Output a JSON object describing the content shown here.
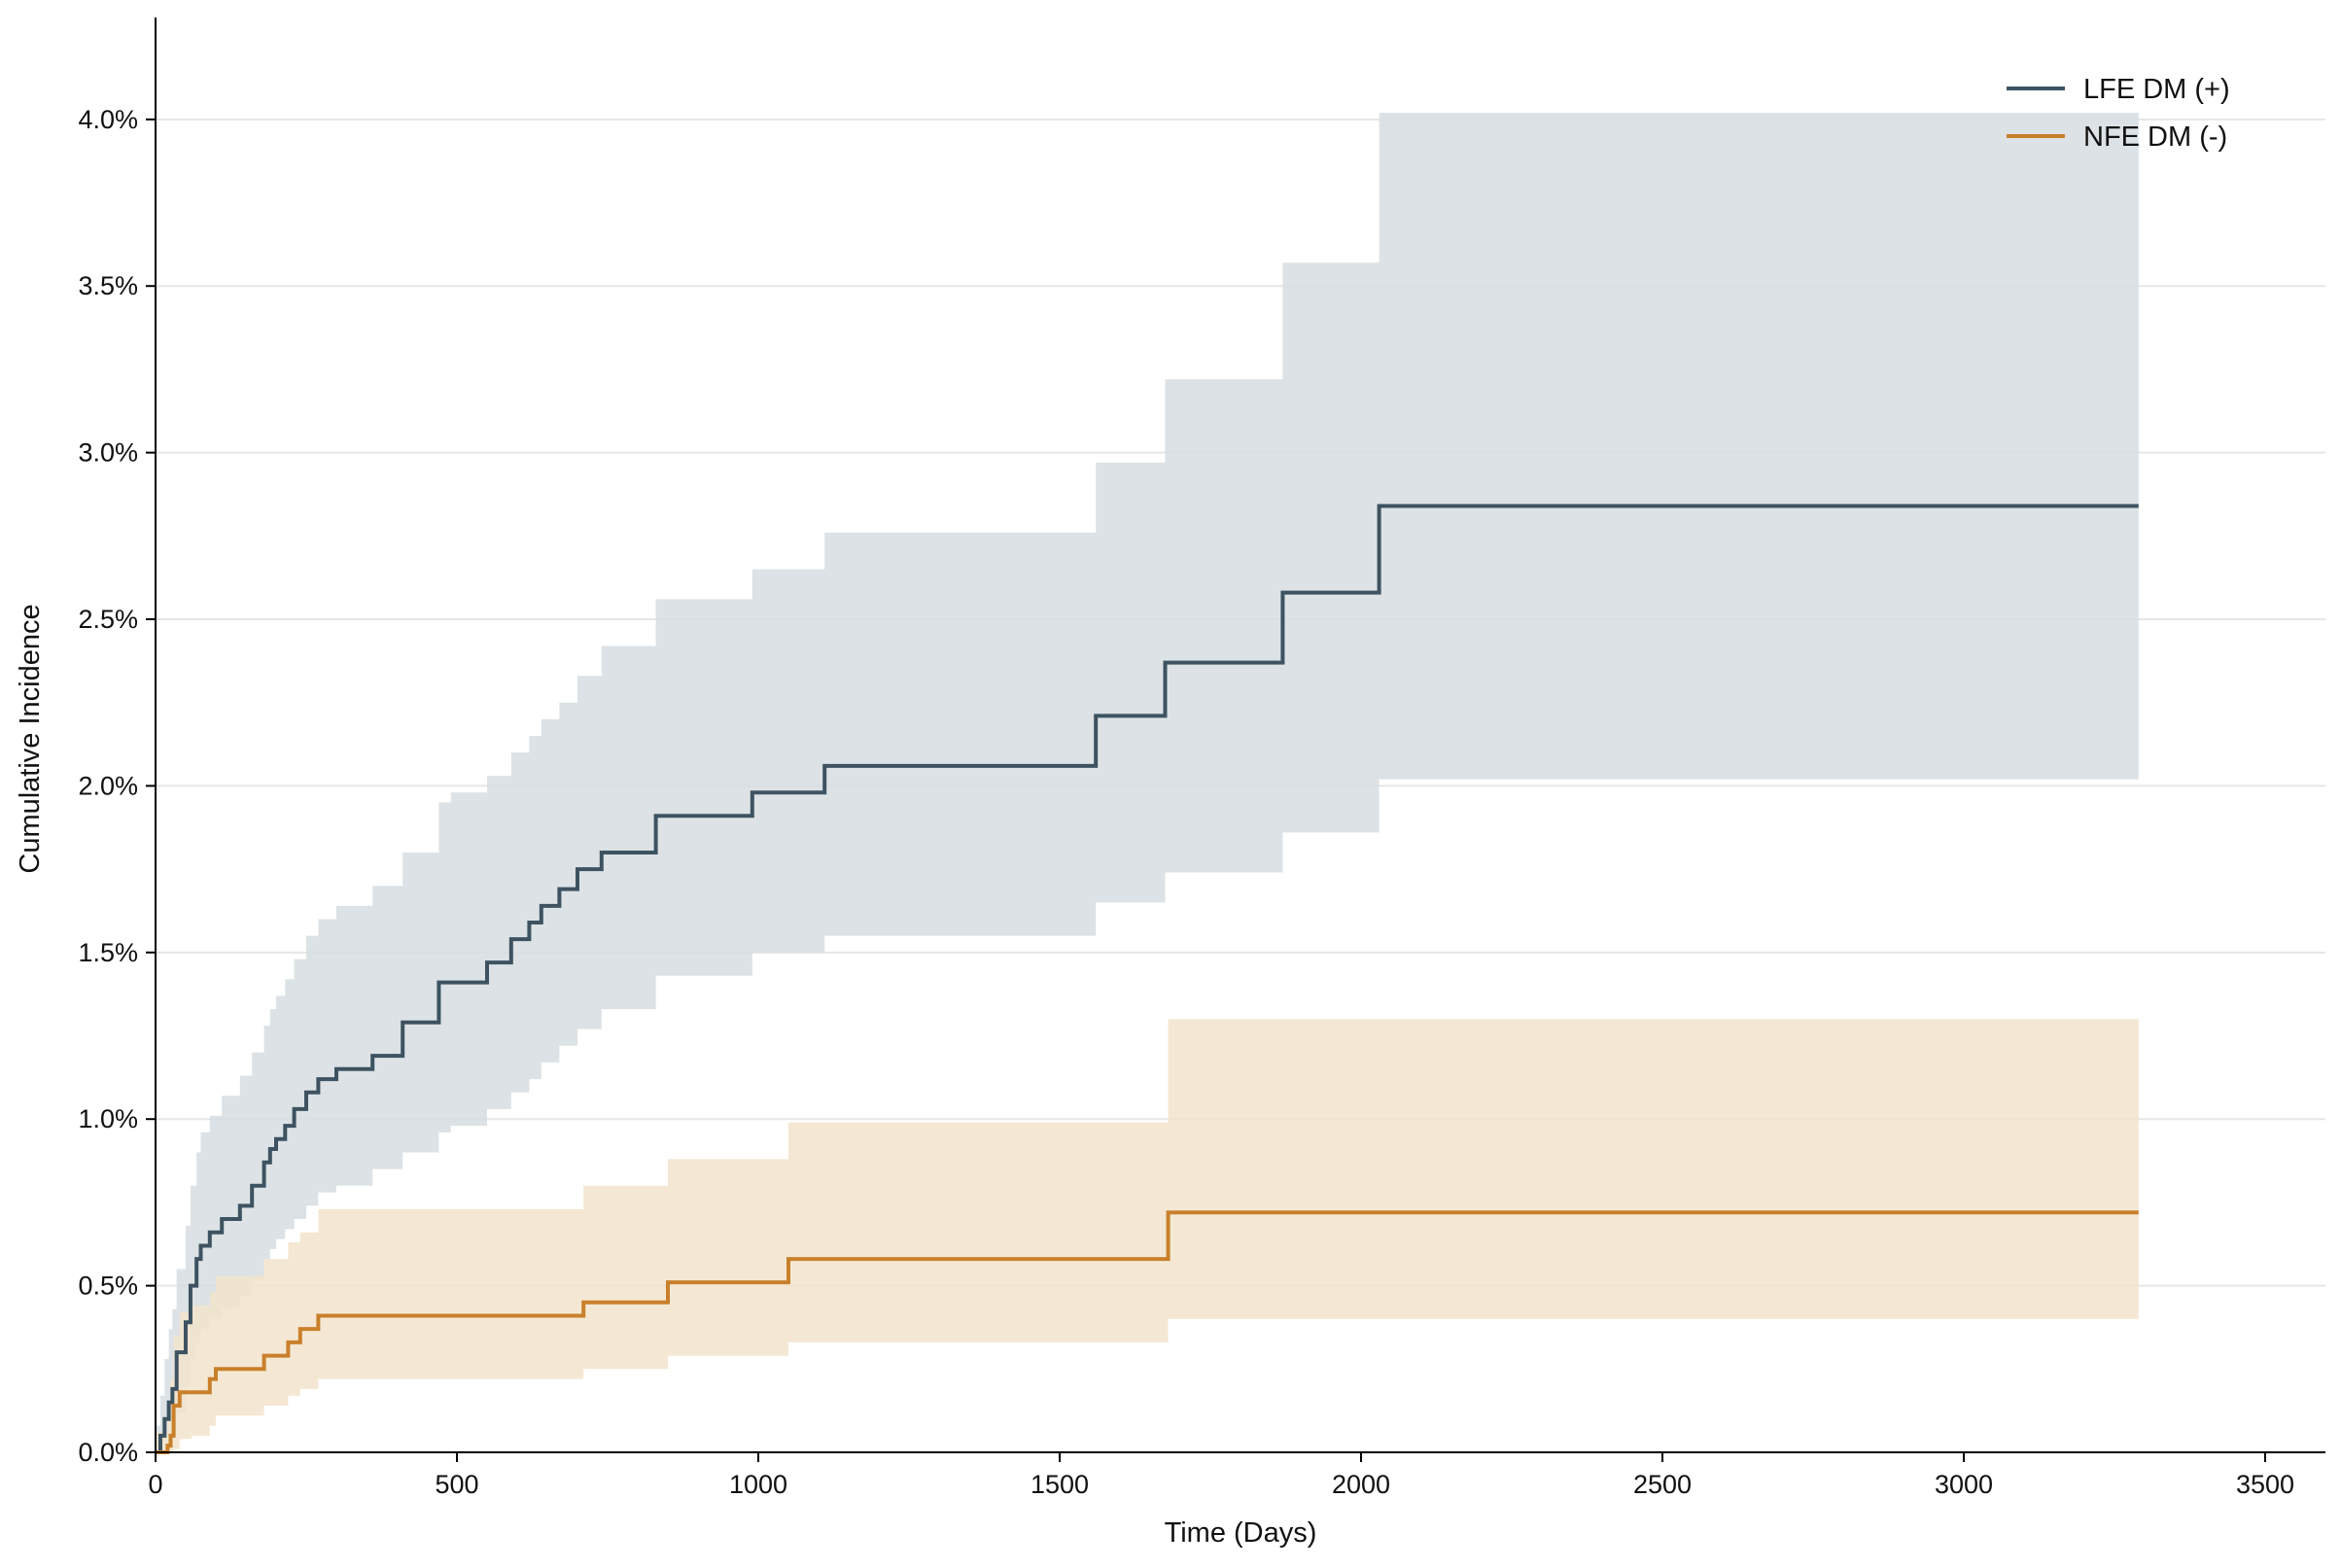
{
  "chart_data": {
    "type": "line",
    "step": true,
    "title": "",
    "xlabel": "Time (Days)",
    "ylabel": "Cumulative Incidence",
    "xlim": [
      0,
      3600
    ],
    "ylim": [
      0,
      4.3
    ],
    "xticks": [
      0,
      500,
      1000,
      1500,
      2000,
      2500,
      3000,
      3500
    ],
    "xtick_labels": [
      "0",
      "500",
      "1000",
      "1500",
      "2000",
      "2500",
      "3000",
      "3500"
    ],
    "yticks": [
      0,
      0.5,
      1.0,
      1.5,
      2.0,
      2.5,
      3.0,
      3.5,
      4.0
    ],
    "ytick_labels": [
      "0.0%",
      "0.5%",
      "1.0%",
      "1.5%",
      "2.0%",
      "2.5%",
      "3.0%",
      "3.5%",
      "4.0%"
    ],
    "grid": "horizontal",
    "legend_position": "top-right",
    "series": [
      {
        "name": "LFE DM (+)",
        "color": "#3d5361",
        "band_color": "#d6dde1",
        "x": [
          0,
          8,
          15,
          22,
          28,
          35,
          50,
          58,
          68,
          75,
          90,
          110,
          140,
          160,
          180,
          190,
          200,
          215,
          230,
          250,
          270,
          300,
          360,
          410,
          470,
          490,
          550,
          590,
          620,
          640,
          670,
          700,
          740,
          830,
          990,
          1110,
          1560,
          1675,
          1870,
          2030,
          3290
        ],
        "y": [
          0.0,
          0.05,
          0.1,
          0.15,
          0.19,
          0.3,
          0.39,
          0.5,
          0.58,
          0.62,
          0.66,
          0.7,
          0.74,
          0.8,
          0.87,
          0.91,
          0.94,
          0.98,
          1.03,
          1.08,
          1.12,
          1.15,
          1.19,
          1.29,
          1.41,
          1.41,
          1.47,
          1.54,
          1.59,
          1.64,
          1.69,
          1.75,
          1.8,
          1.91,
          1.98,
          2.06,
          2.21,
          2.37,
          2.58,
          2.84,
          2.84
        ],
        "lower": [
          0.0,
          0.0,
          0.0,
          0.02,
          0.05,
          0.12,
          0.2,
          0.28,
          0.33,
          0.37,
          0.4,
          0.43,
          0.47,
          0.52,
          0.58,
          0.61,
          0.64,
          0.67,
          0.7,
          0.74,
          0.78,
          0.8,
          0.85,
          0.9,
          0.96,
          0.98,
          1.03,
          1.08,
          1.12,
          1.17,
          1.22,
          1.27,
          1.33,
          1.43,
          1.5,
          1.55,
          1.65,
          1.74,
          1.86,
          2.02,
          2.02
        ],
        "upper": [
          0.08,
          0.17,
          0.28,
          0.37,
          0.43,
          0.55,
          0.68,
          0.8,
          0.9,
          0.96,
          1.01,
          1.07,
          1.13,
          1.2,
          1.28,
          1.33,
          1.37,
          1.42,
          1.48,
          1.55,
          1.6,
          1.64,
          1.7,
          1.8,
          1.95,
          1.98,
          2.03,
          2.1,
          2.15,
          2.2,
          2.25,
          2.33,
          2.42,
          2.56,
          2.65,
          2.76,
          2.97,
          3.22,
          3.57,
          4.02,
          4.02
        ]
      },
      {
        "name": "NFE DM (-)",
        "color": "#c9802a",
        "band_color": "#f2e4cc",
        "x": [
          0,
          20,
          25,
          30,
          40,
          60,
          90,
          100,
          180,
          220,
          240,
          270,
          710,
          850,
          1050,
          1680,
          3290
        ],
        "y": [
          0.0,
          0.02,
          0.05,
          0.14,
          0.18,
          0.18,
          0.22,
          0.25,
          0.29,
          0.33,
          0.37,
          0.41,
          0.45,
          0.51,
          0.58,
          0.72,
          0.72
        ],
        "lower": [
          0.0,
          0.0,
          0.0,
          0.01,
          0.04,
          0.05,
          0.08,
          0.11,
          0.14,
          0.17,
          0.19,
          0.22,
          0.25,
          0.29,
          0.33,
          0.4,
          0.4
        ],
        "upper": [
          0.06,
          0.14,
          0.22,
          0.35,
          0.42,
          0.44,
          0.48,
          0.53,
          0.58,
          0.63,
          0.66,
          0.73,
          0.8,
          0.88,
          0.99,
          1.3,
          1.3
        ]
      }
    ]
  }
}
